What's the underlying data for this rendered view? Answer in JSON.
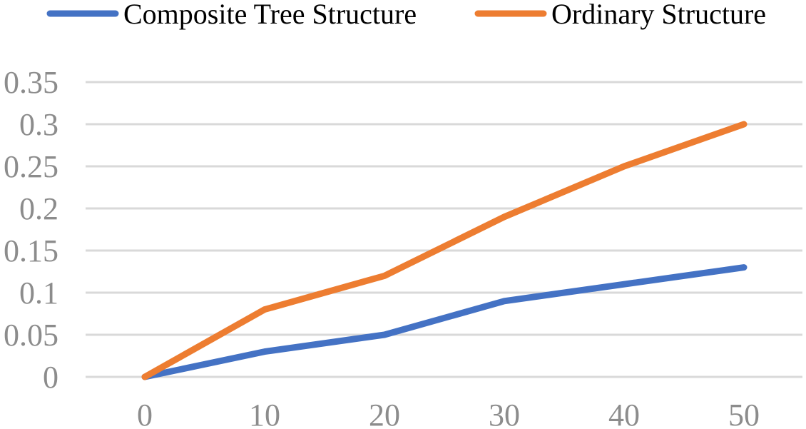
{
  "chart_data": {
    "type": "line",
    "x": [
      0,
      10,
      20,
      30,
      40,
      50
    ],
    "series": [
      {
        "name": "Composite Tree Structure",
        "values": [
          0,
          0.03,
          0.05,
          0.09,
          0.11,
          0.13
        ],
        "color": "#4472C4"
      },
      {
        "name": "Ordinary Structure",
        "values": [
          0,
          0.08,
          0.12,
          0.19,
          0.25,
          0.3
        ],
        "color": "#ED7D31"
      }
    ],
    "xlim": [
      0,
      50
    ],
    "ylim": [
      0,
      0.35
    ],
    "yticks": [
      "0",
      "0.05",
      "0.1",
      "0.15",
      "0.2",
      "0.25",
      "0.3",
      "0.35"
    ],
    "xticks": [
      "0",
      "10",
      "20",
      "30",
      "40",
      "50"
    ],
    "grid": true,
    "grid_color": "#d9d9d9",
    "legend_position": "top",
    "title": "",
    "xlabel": "",
    "ylabel": ""
  }
}
